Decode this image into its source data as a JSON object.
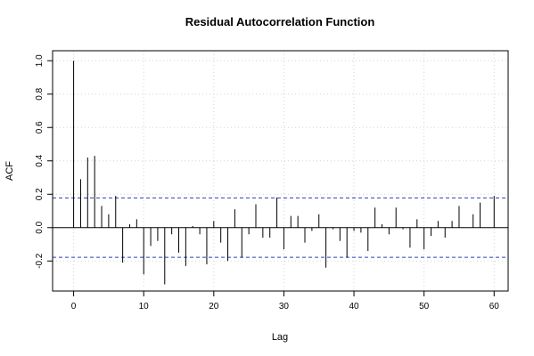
{
  "chart_data": {
    "type": "bar",
    "subtype": "acf-stem",
    "title": "Residual Autocorrelation Function",
    "xlabel": "Lag",
    "ylabel": "ACF",
    "xlim": [
      -3,
      62
    ],
    "ylim": [
      -0.38,
      1.06
    ],
    "x_ticks": [
      0,
      10,
      20,
      30,
      40,
      50,
      60
    ],
    "y_ticks": [
      -0.2,
      0.0,
      0.2,
      0.4,
      0.6,
      0.8,
      1.0
    ],
    "y_tick_labels": [
      "-0.2",
      "0.0",
      "0.2",
      "0.4",
      "0.6",
      "0.8",
      "1.0"
    ],
    "grid": true,
    "confidence_bound": 0.178,
    "lags": [
      0,
      1,
      2,
      3,
      4,
      5,
      6,
      7,
      8,
      9,
      10,
      11,
      12,
      13,
      14,
      15,
      16,
      17,
      18,
      19,
      20,
      21,
      22,
      23,
      24,
      25,
      26,
      27,
      28,
      29,
      30,
      31,
      32,
      33,
      34,
      35,
      36,
      37,
      38,
      39,
      40,
      41,
      42,
      43,
      44,
      45,
      46,
      47,
      48,
      49,
      50,
      51,
      52,
      53,
      54,
      55,
      56,
      57,
      58,
      59,
      60
    ],
    "values": [
      1.0,
      0.29,
      0.42,
      0.43,
      0.13,
      0.08,
      0.19,
      -0.21,
      0.02,
      0.05,
      -0.28,
      -0.11,
      -0.08,
      -0.34,
      -0.04,
      -0.15,
      -0.23,
      0.01,
      -0.04,
      -0.22,
      0.04,
      -0.09,
      -0.2,
      0.11,
      -0.18,
      -0.04,
      0.14,
      -0.06,
      -0.06,
      0.18,
      -0.13,
      0.07,
      0.07,
      -0.09,
      -0.02,
      0.08,
      -0.24,
      -0.01,
      -0.08,
      -0.18,
      -0.02,
      -0.03,
      -0.14,
      0.12,
      0.02,
      -0.04,
      0.12,
      -0.01,
      -0.12,
      0.05,
      -0.13,
      -0.05,
      0.04,
      -0.06,
      0.04,
      0.13,
      0.0,
      0.08,
      0.15,
      0.0,
      0.19
    ]
  },
  "colors": {
    "stem": "#000000",
    "zero_line": "#000000",
    "confidence": "#2f3fbf",
    "grid": "#d3d3d3",
    "frame": "#000000"
  }
}
